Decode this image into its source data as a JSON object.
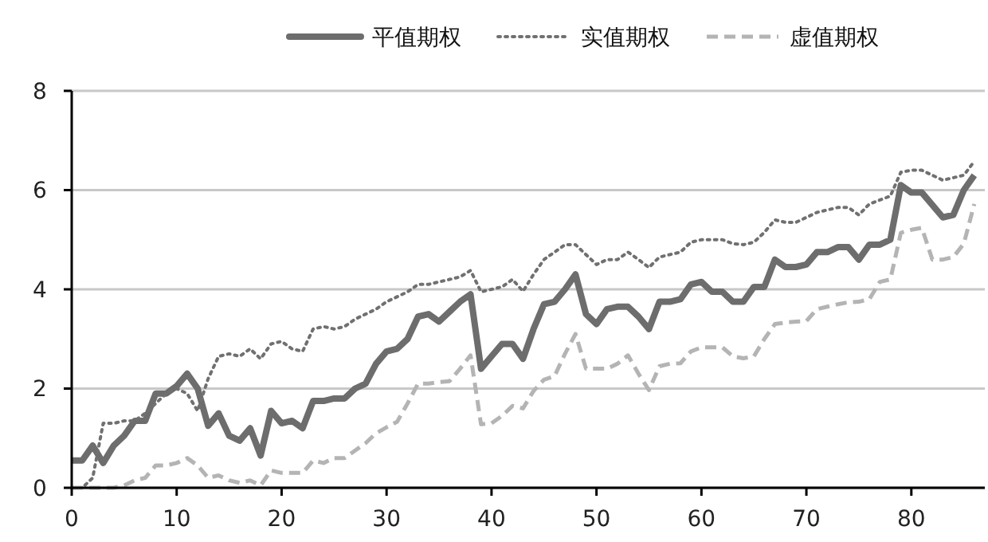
{
  "chart_data": {
    "type": "line",
    "x": [
      0,
      1,
      2,
      3,
      4,
      5,
      6,
      7,
      8,
      9,
      10,
      11,
      12,
      13,
      14,
      15,
      16,
      17,
      18,
      19,
      20,
      21,
      22,
      23,
      24,
      25,
      26,
      27,
      28,
      29,
      30,
      31,
      32,
      33,
      34,
      35,
      36,
      37,
      38,
      39,
      40,
      41,
      42,
      43,
      44,
      45,
      46,
      47,
      48,
      49,
      50,
      51,
      52,
      53,
      54,
      55,
      56,
      57,
      58,
      59,
      60,
      61,
      62,
      63,
      64,
      65,
      66,
      67,
      68,
      69,
      70,
      71,
      72,
      73,
      74,
      75,
      76,
      77,
      78,
      79,
      80,
      81,
      82,
      83,
      84,
      85,
      86
    ],
    "xlim": [
      0,
      87
    ],
    "xticks": [
      0,
      10,
      20,
      30,
      40,
      50,
      60,
      70,
      80
    ],
    "ylim": [
      0,
      8
    ],
    "yticks": [
      0,
      2,
      4,
      6,
      8
    ],
    "grid": "y",
    "legend": "top",
    "marker": "none",
    "series": [
      {
        "name": "平值期权",
        "color": "#6d6d6d",
        "line_style": "solid",
        "values": [
          0.55,
          0.55,
          0.85,
          0.5,
          0.85,
          1.05,
          1.35,
          1.35,
          1.9,
          1.9,
          2.05,
          2.3,
          2.0,
          1.25,
          1.5,
          1.05,
          0.95,
          1.2,
          0.65,
          1.55,
          1.3,
          1.35,
          1.2,
          1.75,
          1.75,
          1.8,
          1.8,
          2.0,
          2.1,
          2.5,
          2.75,
          2.8,
          3.0,
          3.45,
          3.5,
          3.35,
          3.55,
          3.75,
          3.9,
          2.4,
          2.65,
          2.9,
          2.9,
          2.6,
          3.2,
          3.7,
          3.75,
          4.0,
          4.3,
          3.5,
          3.3,
          3.6,
          3.65,
          3.65,
          3.45,
          3.2,
          3.75,
          3.75,
          3.8,
          4.1,
          4.15,
          3.95,
          3.95,
          3.75,
          3.75,
          4.05,
          4.05,
          4.6,
          4.45,
          4.45,
          4.5,
          4.75,
          4.75,
          4.85,
          4.85,
          4.6,
          4.9,
          4.9,
          5.0,
          6.1,
          5.95,
          5.95,
          5.7,
          5.45,
          5.5,
          6.0,
          6.3
        ]
      },
      {
        "name": "实值期权",
        "color": "#707070",
        "line_style": "dotted",
        "values": [
          0,
          0,
          0.2,
          1.3,
          1.3,
          1.35,
          1.35,
          1.5,
          1.7,
          1.9,
          2.0,
          1.9,
          1.55,
          2.2,
          2.65,
          2.7,
          2.65,
          2.8,
          2.6,
          2.9,
          2.95,
          2.8,
          2.75,
          3.2,
          3.25,
          3.2,
          3.25,
          3.4,
          3.5,
          3.6,
          3.75,
          3.85,
          3.95,
          4.1,
          4.1,
          4.15,
          4.2,
          4.25,
          4.38,
          3.95,
          4.0,
          4.05,
          4.2,
          3.96,
          4.3,
          4.6,
          4.75,
          4.9,
          4.9,
          4.7,
          4.5,
          4.6,
          4.6,
          4.75,
          4.6,
          4.44,
          4.65,
          4.7,
          4.75,
          4.95,
          5.0,
          5.0,
          5.0,
          4.92,
          4.9,
          4.95,
          5.15,
          5.4,
          5.35,
          5.35,
          5.45,
          5.55,
          5.6,
          5.65,
          5.65,
          5.5,
          5.72,
          5.8,
          5.88,
          6.36,
          6.4,
          6.4,
          6.3,
          6.2,
          6.25,
          6.3,
          6.58
        ]
      },
      {
        "name": "虚值期权",
        "color": "#b4b4b4",
        "line_style": "dashed",
        "values": [
          0,
          0,
          0,
          0,
          0,
          0.05,
          0.15,
          0.2,
          0.45,
          0.45,
          0.5,
          0.6,
          0.45,
          0.2,
          0.25,
          0.15,
          0.1,
          0.15,
          0.05,
          0.35,
          0.3,
          0.3,
          0.3,
          0.55,
          0.5,
          0.6,
          0.6,
          0.75,
          0.9,
          1.1,
          1.22,
          1.33,
          1.7,
          2.1,
          2.1,
          2.13,
          2.15,
          2.4,
          2.67,
          1.28,
          1.3,
          1.45,
          1.65,
          1.6,
          1.95,
          2.18,
          2.25,
          2.7,
          3.1,
          2.4,
          2.4,
          2.4,
          2.5,
          2.67,
          2.3,
          1.97,
          2.45,
          2.5,
          2.51,
          2.75,
          2.83,
          2.83,
          2.83,
          2.65,
          2.61,
          2.65,
          3.0,
          3.3,
          3.33,
          3.35,
          3.36,
          3.6,
          3.65,
          3.7,
          3.74,
          3.75,
          3.8,
          4.15,
          4.2,
          5.14,
          5.2,
          5.24,
          4.6,
          4.6,
          4.65,
          4.92,
          5.72
        ]
      }
    ]
  }
}
